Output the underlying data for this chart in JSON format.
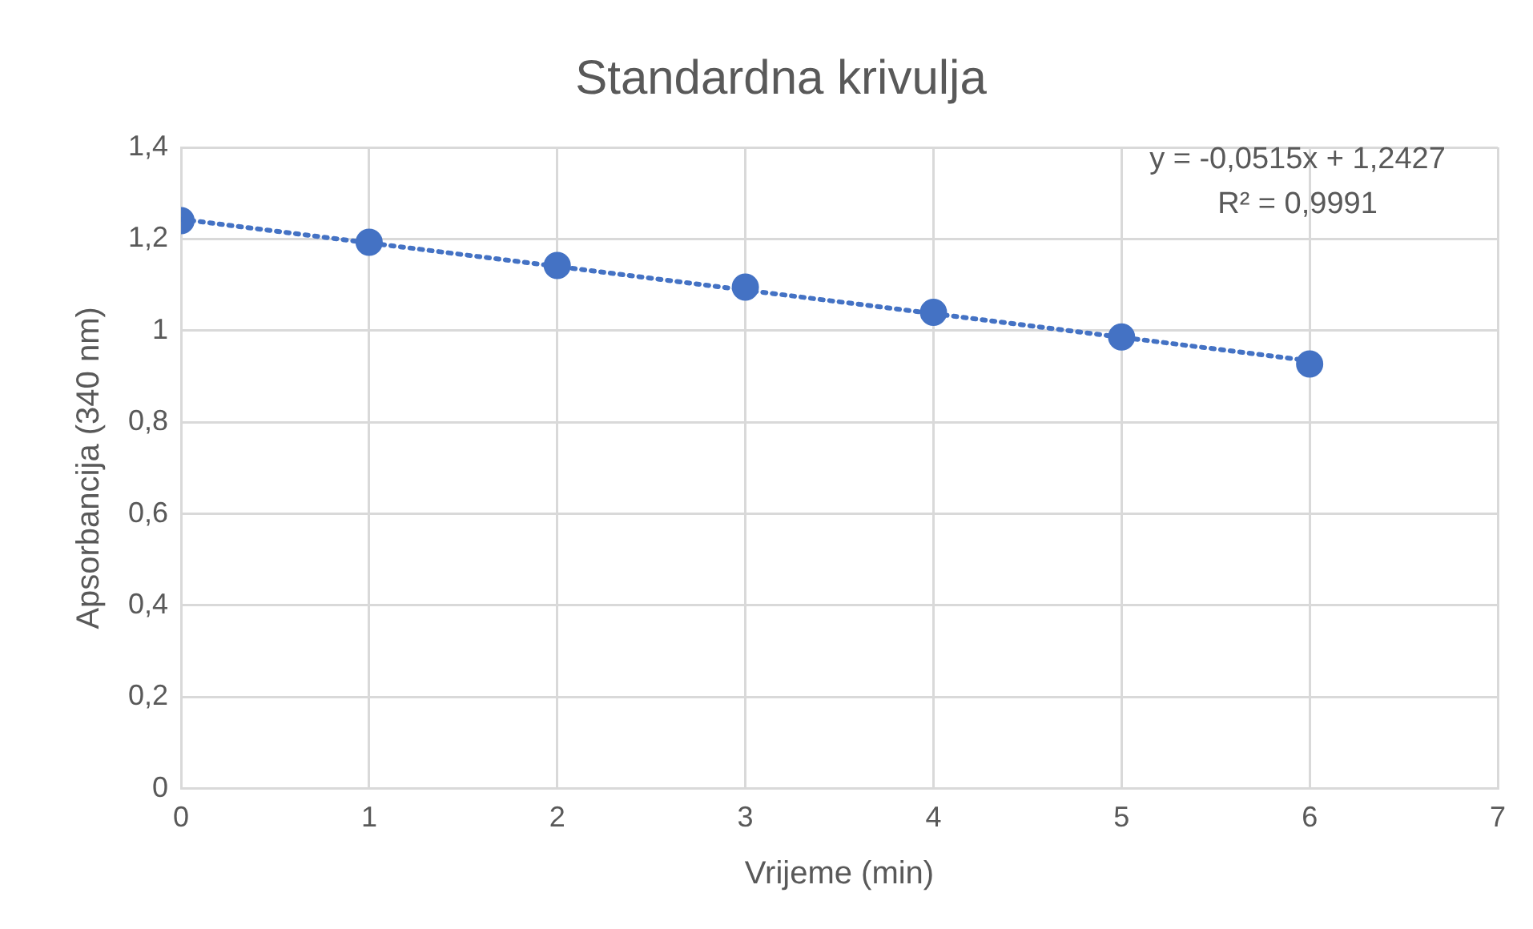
{
  "chart_data": {
    "type": "scatter",
    "title": "Standardna krivulja",
    "xlabel": "Vrijeme (min)",
    "ylabel": "Apsorbancija (340 nm)",
    "xlim": [
      0,
      7
    ],
    "xticks": [
      0,
      1,
      2,
      3,
      4,
      5,
      6,
      7
    ],
    "ylim": [
      0,
      1.4
    ],
    "yticks": [
      0,
      {
        "value": 0.2,
        "label": "0,2"
      },
      {
        "value": 0.4,
        "label": "0,4"
      },
      {
        "value": 0.6,
        "label": "0,6"
      },
      {
        "value": 0.8,
        "label": "0,8"
      },
      1,
      {
        "value": 1.2,
        "label": "1,2"
      },
      {
        "value": 1.4,
        "label": "1,4"
      }
    ],
    "grid": true,
    "legend": false,
    "series": [
      {
        "color": "#4472c4",
        "marker": "circle",
        "x": [
          0,
          1,
          2,
          3,
          4,
          5,
          6
        ],
        "values": [
          1.24,
          1.193,
          1.142,
          1.095,
          1.04,
          0.986,
          0.927
        ]
      },
      {
        "type": "line",
        "color": "#4472c4",
        "marker": "none",
        "line_style": "dotted",
        "x": [
          0,
          6
        ],
        "values": [
          1.243,
          0.934
        ]
      }
    ],
    "annotations": [
      "y = -0,0515x + 1,2427",
      "R² = 0,9991"
    ]
  }
}
